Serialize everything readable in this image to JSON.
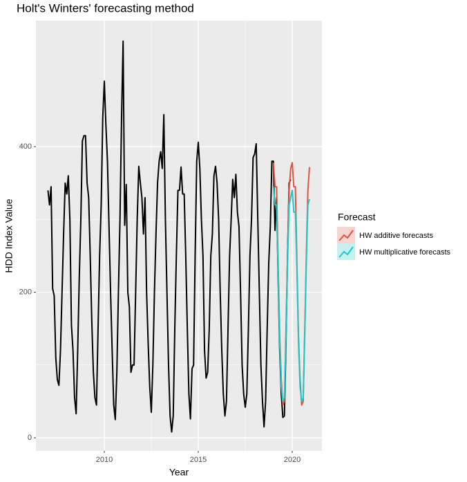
{
  "chart_data": {
    "type": "line",
    "title": "Holt's Winters' forecasting method",
    "x_label": "Year",
    "y_label": "HDD Index Value",
    "legend_title": "Forecast",
    "xlim": [
      2006.36,
      2021.58
    ],
    "xticks": [
      2010,
      2015,
      2020
    ],
    "ylim": [
      -18,
      573
    ],
    "yticks": [
      0,
      200,
      400
    ],
    "grid": true,
    "series": [
      {
        "color": "#000000",
        "x": [
          2007.0,
          2007.083,
          2007.167,
          2007.25,
          2007.333,
          2007.417,
          2007.5,
          2007.583,
          2007.667,
          2007.75,
          2007.833,
          2007.917,
          2008.0,
          2008.083,
          2008.167,
          2008.25,
          2008.333,
          2008.417,
          2008.5,
          2008.583,
          2008.667,
          2008.75,
          2008.833,
          2008.917,
          2009.0,
          2009.083,
          2009.167,
          2009.25,
          2009.333,
          2009.417,
          2009.5,
          2009.583,
          2009.667,
          2009.75,
          2009.833,
          2009.917,
          2010.0,
          2010.083,
          2010.167,
          2010.25,
          2010.333,
          2010.417,
          2010.5,
          2010.583,
          2010.667,
          2010.75,
          2010.833,
          2010.917,
          2011.0,
          2011.083,
          2011.167,
          2011.25,
          2011.333,
          2011.417,
          2011.5,
          2011.583,
          2011.667,
          2011.75,
          2011.833,
          2011.917,
          2012.0,
          2012.083,
          2012.167,
          2012.25,
          2012.333,
          2012.417,
          2012.5,
          2012.583,
          2012.667,
          2012.75,
          2012.833,
          2012.917,
          2013.0,
          2013.083,
          2013.167,
          2013.25,
          2013.333,
          2013.417,
          2013.5,
          2013.583,
          2013.667,
          2013.75,
          2013.833,
          2013.917,
          2014.0,
          2014.083,
          2014.167,
          2014.25,
          2014.333,
          2014.417,
          2014.5,
          2014.583,
          2014.667,
          2014.75,
          2014.833,
          2014.917,
          2015.0,
          2015.083,
          2015.167,
          2015.25,
          2015.333,
          2015.417,
          2015.5,
          2015.583,
          2015.667,
          2015.75,
          2015.833,
          2015.917,
          2016.0,
          2016.083,
          2016.167,
          2016.25,
          2016.333,
          2016.417,
          2016.5,
          2016.583,
          2016.667,
          2016.75,
          2016.833,
          2016.917,
          2017.0,
          2017.083,
          2017.167,
          2017.25,
          2017.333,
          2017.417,
          2017.5,
          2017.583,
          2017.667,
          2017.75,
          2017.833,
          2017.917,
          2018.0,
          2018.083,
          2018.167,
          2018.25,
          2018.333,
          2018.417,
          2018.5,
          2018.583,
          2018.667,
          2018.75,
          2018.833,
          2018.917,
          2019.0,
          2019.083,
          2019.167,
          2019.25,
          2019.333,
          2019.417,
          2019.5,
          2019.583,
          2019.667,
          2019.75,
          2019.833,
          2019.917
        ],
        "values": [
          340,
          320,
          345,
          205,
          195,
          110,
          80,
          72,
          120,
          200,
          280,
          350,
          335,
          360,
          300,
          155,
          120,
          55,
          33,
          120,
          220,
          300,
          408,
          415,
          415,
          350,
          330,
          250,
          160,
          90,
          55,
          45,
          150,
          250,
          320,
          440,
          490,
          430,
          380,
          290,
          200,
          120,
          45,
          25,
          90,
          200,
          300,
          440,
          545,
          292,
          348,
          200,
          180,
          90,
          100,
          100,
          200,
          300,
          373,
          350,
          330,
          280,
          330,
          200,
          130,
          70,
          35,
          100,
          200,
          280,
          350,
          380,
          393,
          370,
          444,
          300,
          200,
          100,
          30,
          8,
          30,
          150,
          250,
          340,
          340,
          372,
          335,
          335,
          250,
          150,
          60,
          26,
          95,
          100,
          250,
          380,
          406,
          370,
          300,
          250,
          120,
          82,
          90,
          150,
          250,
          280,
          360,
          373,
          350,
          300,
          200,
          120,
          60,
          30,
          50,
          150,
          250,
          300,
          355,
          330,
          362,
          310,
          290,
          200,
          100,
          60,
          42,
          60,
          150,
          250,
          300,
          385,
          390,
          404,
          300,
          200,
          100,
          50,
          15,
          50,
          150,
          240,
          290,
          380,
          380,
          285,
          330,
          220,
          120,
          60,
          28,
          30,
          130,
          250,
          350,
          355
        ]
      },
      {
        "name": "HW additive forecasts",
        "color": "#e0533f",
        "x": [
          2019.0,
          2019.083,
          2019.167,
          2019.25,
          2019.333,
          2019.417,
          2019.5,
          2019.583,
          2019.667,
          2019.75,
          2019.833,
          2019.917,
          2020.0,
          2020.083,
          2020.167,
          2020.25,
          2020.333,
          2020.417,
          2020.5,
          2020.583,
          2020.667,
          2020.75,
          2020.833,
          2020.917
        ],
        "values": [
          378,
          345,
          345,
          240,
          140,
          80,
          45,
          50,
          150,
          250,
          340,
          370,
          378,
          345,
          345,
          240,
          140,
          80,
          45,
          50,
          150,
          250,
          340,
          372
        ]
      },
      {
        "name": "HW multiplicative forecasts",
        "color": "#1ec8c8",
        "x": [
          2019.0,
          2019.083,
          2019.167,
          2019.25,
          2019.333,
          2019.417,
          2019.5,
          2019.583,
          2019.667,
          2019.75,
          2019.833,
          2019.917,
          2020.0,
          2020.083,
          2020.167,
          2020.25,
          2020.333,
          2020.417,
          2020.5,
          2020.583,
          2020.667,
          2020.75,
          2020.833,
          2020.917
        ],
        "values": [
          345,
          320,
          320,
          230,
          130,
          70,
          50,
          55,
          140,
          240,
          320,
          330,
          340,
          310,
          310,
          230,
          130,
          70,
          50,
          55,
          140,
          240,
          320,
          328
        ]
      }
    ]
  }
}
